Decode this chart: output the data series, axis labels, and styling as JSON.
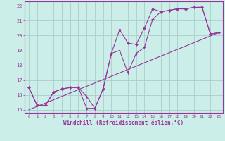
{
  "title": "",
  "xlabel": "Windchill (Refroidissement éolien,°C)",
  "ylabel": "",
  "bg_color": "#cceee8",
  "grid_color": "#aacccc",
  "line_color": "#993399",
  "x_hours": [
    0,
    1,
    2,
    3,
    4,
    5,
    6,
    7,
    8,
    9,
    10,
    11,
    12,
    13,
    14,
    15,
    16,
    17,
    18,
    19,
    20,
    21,
    22,
    23
  ],
  "series1": [
    16.5,
    15.3,
    15.3,
    16.2,
    16.4,
    16.5,
    16.5,
    15.1,
    15.1,
    16.4,
    18.8,
    20.4,
    19.5,
    19.4,
    20.5,
    21.8,
    21.6,
    21.7,
    21.8,
    21.8,
    21.9,
    21.9,
    20.1,
    20.2
  ],
  "series2": [
    16.5,
    15.3,
    15.3,
    16.2,
    16.4,
    16.5,
    16.5,
    15.9,
    15.1,
    16.4,
    18.8,
    19.0,
    17.5,
    18.8,
    19.2,
    21.1,
    21.6,
    21.7,
    21.8,
    21.8,
    21.9,
    21.9,
    20.1,
    20.2
  ],
  "diag_start_x": 0,
  "diag_start_y": 15.0,
  "diag_end_x": 23,
  "diag_end_y": 20.2,
  "ylim": [
    14.8,
    22.3
  ],
  "xlim": [
    -0.5,
    23.5
  ],
  "yticks": [
    15,
    16,
    17,
    18,
    19,
    20,
    21,
    22
  ],
  "xticks": [
    0,
    1,
    2,
    3,
    4,
    5,
    6,
    7,
    8,
    9,
    10,
    11,
    12,
    13,
    14,
    15,
    16,
    17,
    18,
    19,
    20,
    21,
    22,
    23
  ],
  "xtick_labels": [
    "0",
    "1",
    "2",
    "3",
    "4",
    "5",
    "6",
    "7",
    "8",
    "9",
    "10",
    "11",
    "12",
    "13",
    "14",
    "15",
    "16",
    "17",
    "18",
    "19",
    "20",
    "21",
    "22",
    "23"
  ]
}
